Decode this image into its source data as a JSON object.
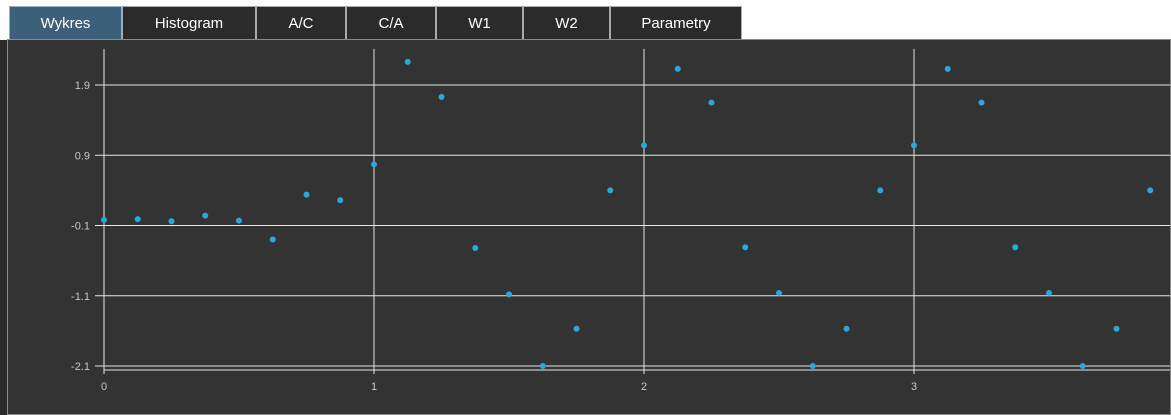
{
  "tabs": [
    {
      "label": "Wykres",
      "active": true
    },
    {
      "label": "Histogram",
      "active": false
    },
    {
      "label": "A/C",
      "active": false
    },
    {
      "label": "C/A",
      "active": false
    },
    {
      "label": "W1",
      "active": false
    },
    {
      "label": "W2",
      "active": false
    },
    {
      "label": "Parametry",
      "active": false
    }
  ],
  "colors": {
    "point": "#2aa7e0",
    "grid": "#e6e6e6",
    "background": "#333333",
    "active_tab": "#3c5f7a"
  },
  "chart_data": {
    "type": "scatter",
    "grid": true,
    "xlim": [
      0,
      3.85
    ],
    "ylim": [
      -2.1,
      2.3
    ],
    "x_ticks": [
      0,
      1,
      2,
      3
    ],
    "y_ticks": [
      -2.1,
      -1.1,
      -0.1,
      0.9,
      1.9
    ],
    "x_tick_labels": [
      "0",
      "1",
      "2",
      "3"
    ],
    "y_tick_labels": [
      "-2.1",
      "-1.1",
      "-0.1",
      "0.9",
      "1.9"
    ],
    "series": [
      {
        "color": "#2aa7e0",
        "x": [
          0,
          0.125,
          0.25,
          0.375,
          0.5,
          0.625,
          0.75,
          0.875,
          1.0,
          1.125,
          1.25,
          1.375,
          1.5,
          1.625,
          1.75,
          1.875,
          2.0,
          2.125,
          2.25,
          2.375,
          2.5,
          2.625,
          2.75,
          2.875,
          3.0,
          3.125,
          3.25,
          3.375,
          3.5,
          3.625,
          3.75,
          3.875
        ],
        "y": [
          -0.02,
          -0.01,
          -0.04,
          0.04,
          -0.03,
          -0.3,
          0.34,
          0.26,
          0.77,
          2.23,
          1.73,
          -0.42,
          -1.08,
          -2.1,
          -1.57,
          0.4,
          1.04,
          2.13,
          1.65,
          -0.41,
          -1.06,
          -2.1,
          -1.57,
          0.4,
          1.04,
          2.13,
          1.65,
          -0.41,
          -1.06,
          -2.1,
          -1.57,
          0.4
        ]
      }
    ]
  }
}
